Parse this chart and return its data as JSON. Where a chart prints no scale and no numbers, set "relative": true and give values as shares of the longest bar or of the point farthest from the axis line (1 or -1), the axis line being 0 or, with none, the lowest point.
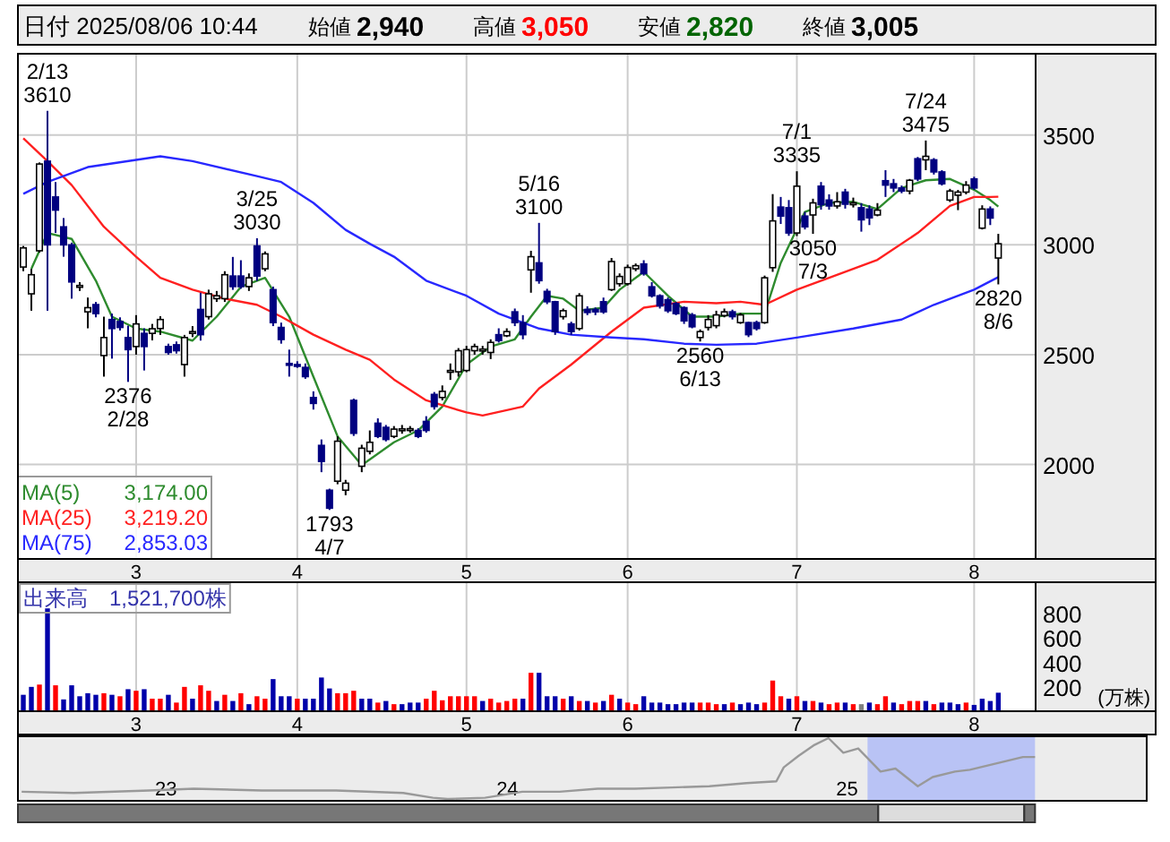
{
  "chart_data": [
    {
      "type": "candlestick",
      "title": "日付 2025/08/06 10:44",
      "annotations": [
        "始値 2,940",
        "高値 3,050",
        "安値 2,820",
        "終値 3,005",
        {
          "text": "2/13\n3610",
          "y": 3610
        },
        {
          "text": "3/25\n3030",
          "y": 3030
        },
        {
          "text": "5/16\n3100",
          "y": 3100
        },
        {
          "text": "7/1\n3335",
          "y": 3335
        },
        {
          "text": "7/24\n3475",
          "y": 3475
        },
        {
          "text": "2376\n2/28",
          "y": 2376
        },
        {
          "text": "1793\n4/7",
          "y": 1793
        },
        {
          "text": "2560\n6/13",
          "y": 2560
        },
        {
          "text": "3050\n7/3",
          "y": 3050
        },
        {
          "text": "2820\n8/6",
          "y": 2820
        }
      ],
      "categories": [
        null,
        null,
        null,
        null,
        null,
        null,
        null,
        null,
        null,
        null,
        null,
        null,
        null,
        null,
        "3",
        null,
        null,
        null,
        null,
        null,
        null,
        null,
        null,
        null,
        null,
        null,
        null,
        null,
        null,
        null,
        null,
        null,
        null,
        null,
        "4",
        null,
        null,
        null,
        null,
        null,
        null,
        null,
        null,
        null,
        null,
        null,
        null,
        null,
        null,
        null,
        null,
        null,
        null,
        null,
        null,
        "5",
        null,
        null,
        null,
        null,
        null,
        null,
        null,
        null,
        null,
        null,
        null,
        null,
        null,
        null,
        null,
        null,
        null,
        null,
        null,
        "6",
        null,
        null,
        null,
        null,
        null,
        null,
        null,
        null,
        null,
        null,
        null,
        null,
        null,
        null,
        null,
        null,
        null,
        null,
        null,
        null,
        "7",
        null,
        null,
        null,
        null,
        null,
        null,
        null,
        null,
        null,
        null,
        null,
        null,
        null,
        null,
        null,
        null,
        null,
        null,
        null,
        null,
        null,
        "8",
        null,
        null,
        null
      ],
      "ohlc": [
        [
          2899,
          2995,
          2880,
          2986
        ],
        [
          2777,
          2891,
          2700,
          2864
        ],
        [
          2973,
          3375,
          2965,
          3368
        ],
        [
          3381,
          3610,
          2700,
          3000
        ],
        [
          3218,
          3286,
          3054,
          3158
        ],
        [
          3082,
          3122,
          2946,
          3000
        ],
        [
          3000,
          3010,
          2755,
          2831
        ],
        [
          2815,
          2830,
          2790,
          2815
        ],
        [
          2695,
          2760,
          2620,
          2714
        ],
        [
          2728,
          2740,
          2670,
          2687
        ],
        [
          2496,
          2673,
          2400,
          2578
        ],
        [
          2660,
          2687,
          2482,
          2619
        ],
        [
          2651,
          2670,
          2610,
          2624
        ],
        [
          2578,
          2632,
          2376,
          2523
        ],
        [
          2537,
          2680,
          2500,
          2640
        ],
        [
          2597,
          2620,
          2428,
          2537
        ],
        [
          2597,
          2640,
          2565,
          2618
        ],
        [
          2619,
          2675,
          2590,
          2660
        ],
        [
          2537,
          2550,
          2500,
          2510
        ],
        [
          2545,
          2560,
          2505,
          2518
        ],
        [
          2455,
          2590,
          2400,
          2578
        ],
        [
          2605,
          2630,
          2580,
          2605
        ],
        [
          2706,
          2782,
          2564,
          2591
        ],
        [
          2673,
          2796,
          2660,
          2777
        ],
        [
          2755,
          2790,
          2740,
          2768
        ],
        [
          2755,
          2880,
          2740,
          2864
        ],
        [
          2858,
          2945,
          2795,
          2810
        ],
        [
          2858,
          2930,
          2800,
          2810
        ],
        [
          2810,
          2870,
          2790,
          2850
        ],
        [
          2995,
          3030,
          2836,
          2858
        ],
        [
          2891,
          2970,
          2880,
          2959
        ],
        [
          2796,
          2810,
          2630,
          2646
        ],
        [
          2624,
          2646,
          2550,
          2569
        ],
        [
          2460,
          2523,
          2400,
          2455
        ],
        [
          2455,
          2470,
          2440,
          2450
        ],
        [
          2442,
          2460,
          2390,
          2400
        ],
        [
          2305,
          2333,
          2250,
          2278
        ],
        [
          2087,
          2114,
          1965,
          2014
        ],
        [
          1883,
          1890,
          1793,
          1801
        ],
        [
          1924,
          2128,
          1910,
          2106
        ],
        [
          1883,
          1930,
          1860,
          1915
        ],
        [
          2292,
          2300,
          2130,
          2142
        ],
        [
          1992,
          2090,
          1965,
          2074
        ],
        [
          2060,
          2155,
          2046,
          2101
        ],
        [
          2188,
          2210,
          2120,
          2128
        ],
        [
          2169,
          2180,
          2105,
          2114
        ],
        [
          2128,
          2175,
          2120,
          2161
        ],
        [
          2160,
          2180,
          2140,
          2162
        ],
        [
          2160,
          2175,
          2145,
          2163
        ],
        [
          2155,
          2165,
          2120,
          2128
        ],
        [
          2196,
          2220,
          2145,
          2155
        ],
        [
          2319,
          2330,
          2250,
          2264
        ],
        [
          2305,
          2360,
          2292,
          2333
        ],
        [
          2428,
          2460,
          2385,
          2428
        ],
        [
          2422,
          2530,
          2400,
          2518
        ],
        [
          2428,
          2540,
          2420,
          2523
        ],
        [
          2518,
          2550,
          2500,
          2537
        ],
        [
          2523,
          2540,
          2500,
          2525
        ],
        [
          2510,
          2570,
          2480,
          2556
        ],
        [
          2591,
          2620,
          2555,
          2564
        ],
        [
          2586,
          2620,
          2580,
          2605
        ],
        [
          2695,
          2710,
          2630,
          2646
        ],
        [
          2646,
          2680,
          2570,
          2591
        ],
        [
          2886,
          2973,
          2782,
          2946
        ],
        [
          2918,
          3100,
          2823,
          2837
        ],
        [
          2788,
          2800,
          2730,
          2741
        ],
        [
          2741,
          2745,
          2590,
          2605
        ],
        [
          2673,
          2710,
          2660,
          2700
        ],
        [
          2640,
          2650,
          2590,
          2605
        ],
        [
          2619,
          2780,
          2610,
          2768
        ],
        [
          2706,
          2720,
          2680,
          2692
        ],
        [
          2706,
          2715,
          2680,
          2695
        ],
        [
          2741,
          2760,
          2686,
          2695
        ],
        [
          2796,
          2940,
          2790,
          2924
        ],
        [
          2823,
          2870,
          2810,
          2856
        ],
        [
          2823,
          2910,
          2815,
          2897
        ],
        [
          2891,
          2915,
          2880,
          2905
        ],
        [
          2913,
          2930,
          2860,
          2869
        ],
        [
          2809,
          2830,
          2760,
          2768
        ],
        [
          2768,
          2775,
          2710,
          2722
        ],
        [
          2750,
          2760,
          2690,
          2700
        ],
        [
          2733,
          2740,
          2680,
          2687
        ],
        [
          2714,
          2720,
          2640,
          2654
        ],
        [
          2681,
          2690,
          2620,
          2627
        ],
        [
          2578,
          2615,
          2560,
          2605
        ],
        [
          2624,
          2680,
          2610,
          2660
        ],
        [
          2632,
          2700,
          2620,
          2681
        ],
        [
          2678,
          2710,
          2670,
          2695
        ],
        [
          2695,
          2705,
          2660,
          2673
        ],
        [
          2646,
          2690,
          2640,
          2681
        ],
        [
          2646,
          2650,
          2580,
          2591
        ],
        [
          2646,
          2655,
          2610,
          2619
        ],
        [
          2646,
          2860,
          2640,
          2850
        ],
        [
          2896,
          3231,
          2877,
          3109
        ],
        [
          3172,
          3218,
          3095,
          3131
        ],
        [
          3169,
          3204,
          3041,
          3054
        ],
        [
          3054,
          3335,
          3040,
          3267
        ],
        [
          3131,
          3150,
          3070,
          3082
        ],
        [
          3136,
          3210,
          3050,
          3191
        ],
        [
          3267,
          3286,
          3160,
          3183
        ],
        [
          3204,
          3230,
          3160,
          3177
        ],
        [
          3177,
          3240,
          3165,
          3196
        ],
        [
          3240,
          3255,
          3165,
          3185
        ],
        [
          3190,
          3215,
          3170,
          3191
        ],
        [
          3169,
          3190,
          3060,
          3114
        ],
        [
          3163,
          3180,
          3090,
          3123
        ],
        [
          3136,
          3190,
          3130,
          3158
        ],
        [
          3292,
          3340,
          3218,
          3272
        ],
        [
          3278,
          3300,
          3240,
          3259
        ],
        [
          3259,
          3270,
          3235,
          3245
        ],
        [
          3245,
          3300,
          3230,
          3294
        ],
        [
          3392,
          3400,
          3290,
          3300
        ],
        [
          3387,
          3475,
          3340,
          3403
        ],
        [
          3387,
          3395,
          3320,
          3332
        ],
        [
          3332,
          3340,
          3270,
          3278
        ],
        [
          3204,
          3255,
          3195,
          3245
        ],
        [
          3226,
          3250,
          3158,
          3240
        ],
        [
          3240,
          3290,
          3230,
          3272
        ],
        [
          3300,
          3310,
          3250,
          3259
        ],
        [
          3076,
          3180,
          3070,
          3163
        ],
        [
          3163,
          3175,
          3090,
          3122
        ],
        [
          2940,
          3050,
          2820,
          3005
        ]
      ],
      "series": [
        {
          "type": "line",
          "name": "MA(5) 3,174.00",
          "color": "#2e8b2e",
          "values": [
            null,
            2891,
            null,
            3054,
            null,
            null,
            3027,
            null,
            null,
            2837,
            null,
            2673,
            null,
            null,
            2619,
            null,
            null,
            2605,
            null,
            null,
            null,
            2564,
            null,
            null,
            2673,
            null,
            null,
            2809,
            null,
            null,
            2850,
            null,
            null,
            2673,
            null,
            null,
            2400,
            null,
            null,
            2128,
            null,
            null,
            1997,
            null,
            null,
            null,
            2101,
            null,
            null,
            2155,
            null,
            null,
            2264,
            null,
            null,
            2455,
            null,
            null,
            2537,
            null,
            null,
            2570,
            null,
            2673,
            null,
            2768,
            null,
            2755,
            null,
            2700,
            null,
            null,
            2714,
            null,
            2796,
            null,
            null,
            2877,
            null,
            null,
            2768,
            null,
            null,
            2673,
            null,
            null,
            2673,
            null,
            null,
            2687,
            null,
            null,
            2687,
            null,
            2918,
            null,
            null,
            3150,
            null,
            null,
            3191,
            null,
            null,
            3196,
            null,
            null,
            3163,
            null,
            null,
            3259,
            null,
            null,
            3294,
            null,
            null,
            3300,
            null,
            null,
            3251,
            null,
            3204,
            3174
          ]
        },
        {
          "type": "line",
          "name": "MA(25) 3,219.20",
          "color": "#ff2020",
          "values": [
            3485,
            null,
            null,
            3381,
            null,
            null,
            3272,
            null,
            null,
            null,
            3082,
            null,
            null,
            null,
            2946,
            null,
            null,
            2850,
            null,
            null,
            null,
            2796,
            null,
            null,
            null,
            2755,
            null,
            null,
            null,
            2727,
            null,
            null,
            2673,
            null,
            null,
            null,
            2591,
            null,
            null,
            null,
            2523,
            null,
            null,
            2477,
            null,
            null,
            2387,
            null,
            null,
            null,
            2292,
            null,
            null,
            null,
            null,
            2237,
            null,
            2223,
            null,
            null,
            null,
            null,
            2264,
            null,
            2346,
            null,
            null,
            null,
            2455,
            null,
            null,
            null,
            null,
            2605,
            null,
            null,
            null,
            2714,
            null,
            null,
            null,
            null,
            2741,
            null,
            null,
            null,
            2734,
            null,
            null,
            2741,
            null,
            null,
            2727,
            null,
            null,
            null,
            2796,
            null,
            null,
            null,
            2850,
            null,
            null,
            null,
            null,
            null,
            2932,
            null,
            null,
            null,
            null,
            3054,
            null,
            null,
            null,
            3177,
            null,
            null,
            3218,
            null,
            3218,
            3219
          ]
        },
        {
          "type": "line",
          "name": "MA(75) 2,853.03",
          "color": "#2828ff",
          "values": [
            3232,
            null,
            null,
            3286,
            null,
            null,
            null,
            null,
            3354,
            null,
            null,
            null,
            null,
            null,
            null,
            null,
            null,
            3403,
            null,
            null,
            null,
            3381,
            null,
            null,
            null,
            null,
            null,
            null,
            null,
            3313,
            null,
            null,
            3286,
            null,
            null,
            null,
            3191,
            null,
            null,
            null,
            3068,
            null,
            null,
            3005,
            null,
            null,
            2946,
            null,
            null,
            null,
            2837,
            null,
            null,
            null,
            null,
            2768,
            null,
            null,
            null,
            2687,
            null,
            null,
            null,
            null,
            2619,
            null,
            null,
            null,
            2591,
            null,
            null,
            null,
            null,
            2578,
            null,
            null,
            null,
            2570,
            null,
            null,
            null,
            null,
            2550,
            null,
            null,
            null,
            2545,
            null,
            null,
            null,
            null,
            2550,
            null,
            null,
            null,
            null,
            2578,
            null,
            null,
            null,
            null,
            null,
            null,
            2619,
            null,
            null,
            null,
            null,
            null,
            2660,
            null,
            null,
            null,
            2727,
            null,
            null,
            null,
            null,
            2796,
            null,
            null,
            2853
          ]
        }
      ],
      "ylim": [
        1570,
        3870
      ],
      "yticks": [
        2000,
        2500,
        3000,
        3500
      ],
      "grid": true
    },
    {
      "type": "bar",
      "ylabel": "(万株)",
      "annotations": [
        "出来高　1,521,700株"
      ],
      "categories": [
        null,
        null,
        null,
        null,
        null,
        null,
        null,
        null,
        null,
        null,
        null,
        null,
        null,
        null,
        "3",
        null,
        null,
        null,
        null,
        null,
        null,
        null,
        null,
        null,
        null,
        null,
        null,
        null,
        null,
        null,
        null,
        null,
        null,
        null,
        "4",
        null,
        null,
        null,
        null,
        null,
        null,
        null,
        null,
        null,
        null,
        null,
        null,
        null,
        null,
        null,
        null,
        null,
        null,
        null,
        null,
        "5",
        null,
        null,
        null,
        null,
        null,
        null,
        null,
        null,
        null,
        null,
        null,
        null,
        null,
        null,
        null,
        null,
        null,
        null,
        null,
        "6",
        null,
        null,
        null,
        null,
        null,
        null,
        null,
        null,
        null,
        null,
        null,
        null,
        null,
        null,
        null,
        null,
        null,
        null,
        null,
        null,
        "7",
        null,
        null,
        null,
        null,
        null,
        null,
        null,
        null,
        null,
        null,
        null,
        null,
        null,
        null,
        null,
        null,
        null,
        null,
        null,
        null,
        null,
        "8",
        null,
        null,
        null
      ],
      "values": [
        135,
        200,
        219,
        845,
        213,
        97,
        213,
        123,
        148,
        135,
        148,
        135,
        123,
        181,
        168,
        181,
        103,
        103,
        135,
        71,
        200,
        103,
        213,
        168,
        84,
        135,
        84,
        148,
        58,
        123,
        103,
        264,
        123,
        123,
        103,
        103,
        103,
        277,
        187,
        148,
        148,
        168,
        103,
        103,
        71,
        84,
        58,
        58,
        71,
        71,
        103,
        168,
        90,
        123,
        123,
        123,
        123,
        84,
        103,
        71,
        84,
        103,
        103,
        316,
        316,
        123,
        123,
        103,
        123,
        84,
        84,
        71,
        84,
        135,
        103,
        71,
        58,
        123,
        71,
        71,
        58,
        58,
        71,
        71,
        71,
        71,
        58,
        58,
        71,
        58,
        71,
        58,
        71,
        252,
        123,
        103,
        123,
        84,
        84,
        71,
        58,
        71,
        71,
        58,
        58,
        71,
        58,
        123,
        71,
        58,
        84,
        84,
        84,
        58,
        71,
        71,
        58,
        71,
        52,
        103,
        84,
        152
      ],
      "colors": [
        "#0000aa",
        "#0000aa",
        "#ff0000",
        "#0000aa",
        "#ff0000",
        "#0000aa",
        "#0000aa",
        "#0000aa",
        "#0000aa",
        "#0000aa",
        "#ff0000",
        "#0000aa",
        "#ff0000",
        "#0000aa",
        "#ff0000",
        "#0000aa",
        "#ff0000",
        "#ff0000",
        "#0000aa",
        "#ff0000",
        "#ff0000",
        "#0000aa",
        "#ff0000",
        "#ff0000",
        "#0000aa",
        "#ff0000",
        "#0000aa",
        "#ff0000",
        "#0000aa",
        "#ff0000",
        "#ff0000",
        "#0000aa",
        "#0000aa",
        "#0000aa",
        "#ff0000",
        "#0000aa",
        "#0000aa",
        "#0000aa",
        "#0000aa",
        "#ff0000",
        "#ff0000",
        "#ff0000",
        "#0000aa",
        "#0000aa",
        "#ff0000",
        "#0000aa",
        "#ff0000",
        "#0000aa",
        "#0000aa",
        "#0000aa",
        "#ff0000",
        "#ff0000",
        "#ff0000",
        "#ff0000",
        "#ff0000",
        "#ff0000",
        "#ff0000",
        "#0000aa",
        "#ff0000",
        "#ff0000",
        "#ff0000",
        "#ff0000",
        "#0000aa",
        "#ff0000",
        "#0000aa",
        "#0000aa",
        "#0000aa",
        "#ff0000",
        "#0000aa",
        "#ff0000",
        "#0000aa",
        "#ff0000",
        "#0000aa",
        "#ff0000",
        "#0000aa",
        "#ff0000",
        "#ff0000",
        "#0000aa",
        "#0000aa",
        "#0000aa",
        "#0000aa",
        "#0000aa",
        "#0000aa",
        "#0000aa",
        "#ff0000",
        "#ff0000",
        "#ff0000",
        "#0000aa",
        "#ff0000",
        "#0000aa",
        "#0000aa",
        "#0000aa",
        "#ff0000",
        "#ff0000",
        "#ff0000",
        "#0000aa",
        "#ff0000",
        "#0000aa",
        "#ff0000",
        "#0000aa",
        "#ff0000",
        "#ff0000",
        "#0000aa",
        "#ff0000",
        "#808080",
        "#0000aa",
        "#ff0000",
        "#ff0000",
        "#0000aa",
        "#ff0000",
        "#ff0000",
        "#ff0000",
        "#0000aa",
        "#ff0000",
        "#0000aa",
        "#0000aa",
        "#0000aa",
        "#ff0000",
        "#0000aa",
        "#0000aa",
        "#0000aa",
        "#0000aa"
      ],
      "ylim": [
        0,
        1060
      ],
      "yticks": [
        200,
        400,
        600,
        800
      ],
      "grid": "x"
    },
    {
      "type": "line",
      "relative": true,
      "x": [
        "2022-08-13",
        "2022-10-08",
        "2022-12-28",
        "2023-02-14",
        "2023-04-28",
        "2023-07-17",
        "2023-09-27",
        "2023-10-29",
        "2023-11-14",
        "2023-12-24",
        "2024-02-02",
        "2024-03-13",
        "2024-04-23",
        "2024-06-02",
        "2024-07-12",
        "2024-08-21",
        "2024-09-30",
        "2024-11-01",
        "2024-11-09",
        "2024-11-25",
        "2024-12-11",
        "2024-12-27",
        "2025-01-12",
        "2025-01-28",
        "2025-02-21",
        "2025-03-09",
        "2025-04-02",
        "2025-04-18",
        "2025-05-12",
        "2025-05-28",
        "2025-06-30",
        "2025-07-24",
        "2025-08-06"
      ],
      "series": [
        {
          "color": "#999999",
          "values": [
            0.12,
            0.1,
            0.14,
            0.17,
            0.14,
            0.14,
            0.1,
            0.02,
            0,
            0.02,
            0.12,
            0.12,
            0.17,
            0.17,
            0.19,
            0.21,
            0.26,
            0.29,
            0.52,
            0.71,
            0.88,
            1,
            0.76,
            0.83,
            0.45,
            0.5,
            0.21,
            0.36,
            0.45,
            0.48,
            0.6,
            0.69,
            0.69
          ]
        }
      ],
      "xlim": [
        "2022-08-09",
        "2025-12-04"
      ],
      "xticks": [
        {
          "value": "2023-01-15",
          "label": "23"
        },
        {
          "value": "2024-01-17",
          "label": "24"
        },
        {
          "value": "2025-01-16",
          "label": "25"
        }
      ],
      "bands": [
        {
          "axis": "x",
          "from": "2025-02-07",
          "to": "2025-08-06",
          "color": "#b9c3f5"
        }
      ]
    }
  ]
}
